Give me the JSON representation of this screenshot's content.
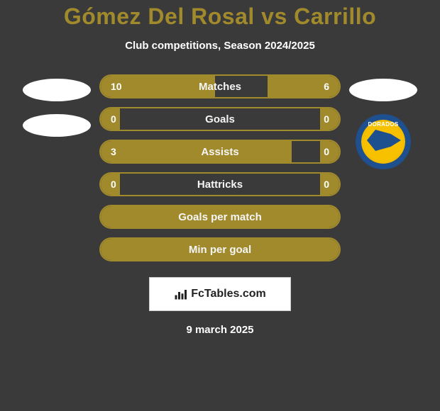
{
  "header": {
    "title": "Gómez Del Rosal vs Carrillo",
    "title_color": "#a08a2c",
    "subtitle": "Club competitions, Season 2024/2025"
  },
  "colors": {
    "background": "#3a3a3a",
    "accent": "#a08a2c",
    "text": "#ffffff",
    "placeholder_bg": "#ffffff"
  },
  "left_player": {
    "placeholders": 2
  },
  "right_player": {
    "placeholders": 1,
    "team": {
      "name": "Dorados",
      "logo_ring_color": "#1e4f8f",
      "logo_fill_color": "#f7c100",
      "logo_label": "DORADOS"
    }
  },
  "stats": [
    {
      "label": "Matches",
      "left_val": "10",
      "right_val": "6",
      "left_fill_pct": 48,
      "right_fill_pct": 30
    },
    {
      "label": "Goals",
      "left_val": "0",
      "right_val": "0",
      "left_fill_pct": 8,
      "right_fill_pct": 8
    },
    {
      "label": "Assists",
      "left_val": "3",
      "right_val": "0",
      "left_fill_pct": 80,
      "right_fill_pct": 8
    },
    {
      "label": "Hattricks",
      "left_val": "0",
      "right_val": "0",
      "left_fill_pct": 8,
      "right_fill_pct": 8
    },
    {
      "label": "Goals per match",
      "left_val": "",
      "right_val": "",
      "full_fill": true
    },
    {
      "label": "Min per goal",
      "left_val": "",
      "right_val": "",
      "full_fill": true
    }
  ],
  "brand": {
    "text": "FcTables.com",
    "icon_color": "#222222"
  },
  "footer": {
    "date": "9 march 2025"
  }
}
